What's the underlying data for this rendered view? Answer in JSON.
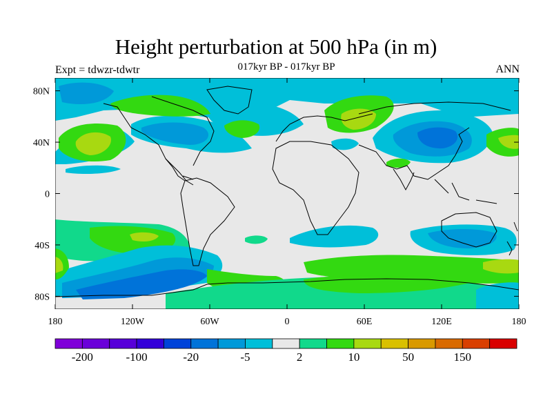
{
  "title": "Height perturbation at 500 hPa (in m)",
  "subtitle": "017kyr BP - 017kyr BP",
  "left_label": "Expt = tdwzr-tdwtr",
  "right_label": "ANN",
  "map": {
    "background_color": "#e8e8e8",
    "x_ticks": [
      "180",
      "120W",
      "60W",
      "0",
      "60E",
      "120E",
      "180"
    ],
    "y_ticks": [
      "80N",
      "40N",
      "0",
      "40S",
      "80S"
    ],
    "x_range": [
      -180,
      180
    ],
    "y_range": [
      -90,
      90
    ]
  },
  "colorbar": {
    "colors": [
      "#7f00d9",
      "#6a00d9",
      "#5700d9",
      "#3300d9",
      "#0043d9",
      "#0073d9",
      "#0099d9",
      "#00bfd9",
      "#e8e8e8",
      "#11d98b",
      "#33d911",
      "#a8d911",
      "#d9c000",
      "#d99900",
      "#d96a00",
      "#d93f00",
      "#d90000"
    ],
    "labels": [
      "-200",
      "-100",
      "-20",
      "-5",
      "2",
      "10",
      "50",
      "150"
    ]
  }
}
